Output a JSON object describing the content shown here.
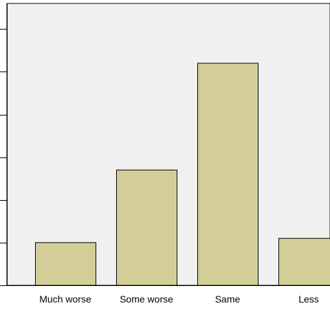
{
  "chart_data": {
    "type": "bar",
    "categories": [
      "Much worse",
      "Some worse",
      "Same",
      "Less"
    ],
    "values": [
      2,
      5.4,
      10.4,
      2.2
    ],
    "ylim": [
      0,
      13.2
    ],
    "y_ticks": [
      0,
      2,
      4,
      6,
      8,
      10,
      12
    ],
    "title": "",
    "xlabel": "",
    "ylabel": "",
    "grid": false,
    "colors": {
      "plot_background": "#f0f0f0",
      "bar_fill": "#d3ce98",
      "bar_stroke": "#000000",
      "axis": "#000000"
    }
  }
}
